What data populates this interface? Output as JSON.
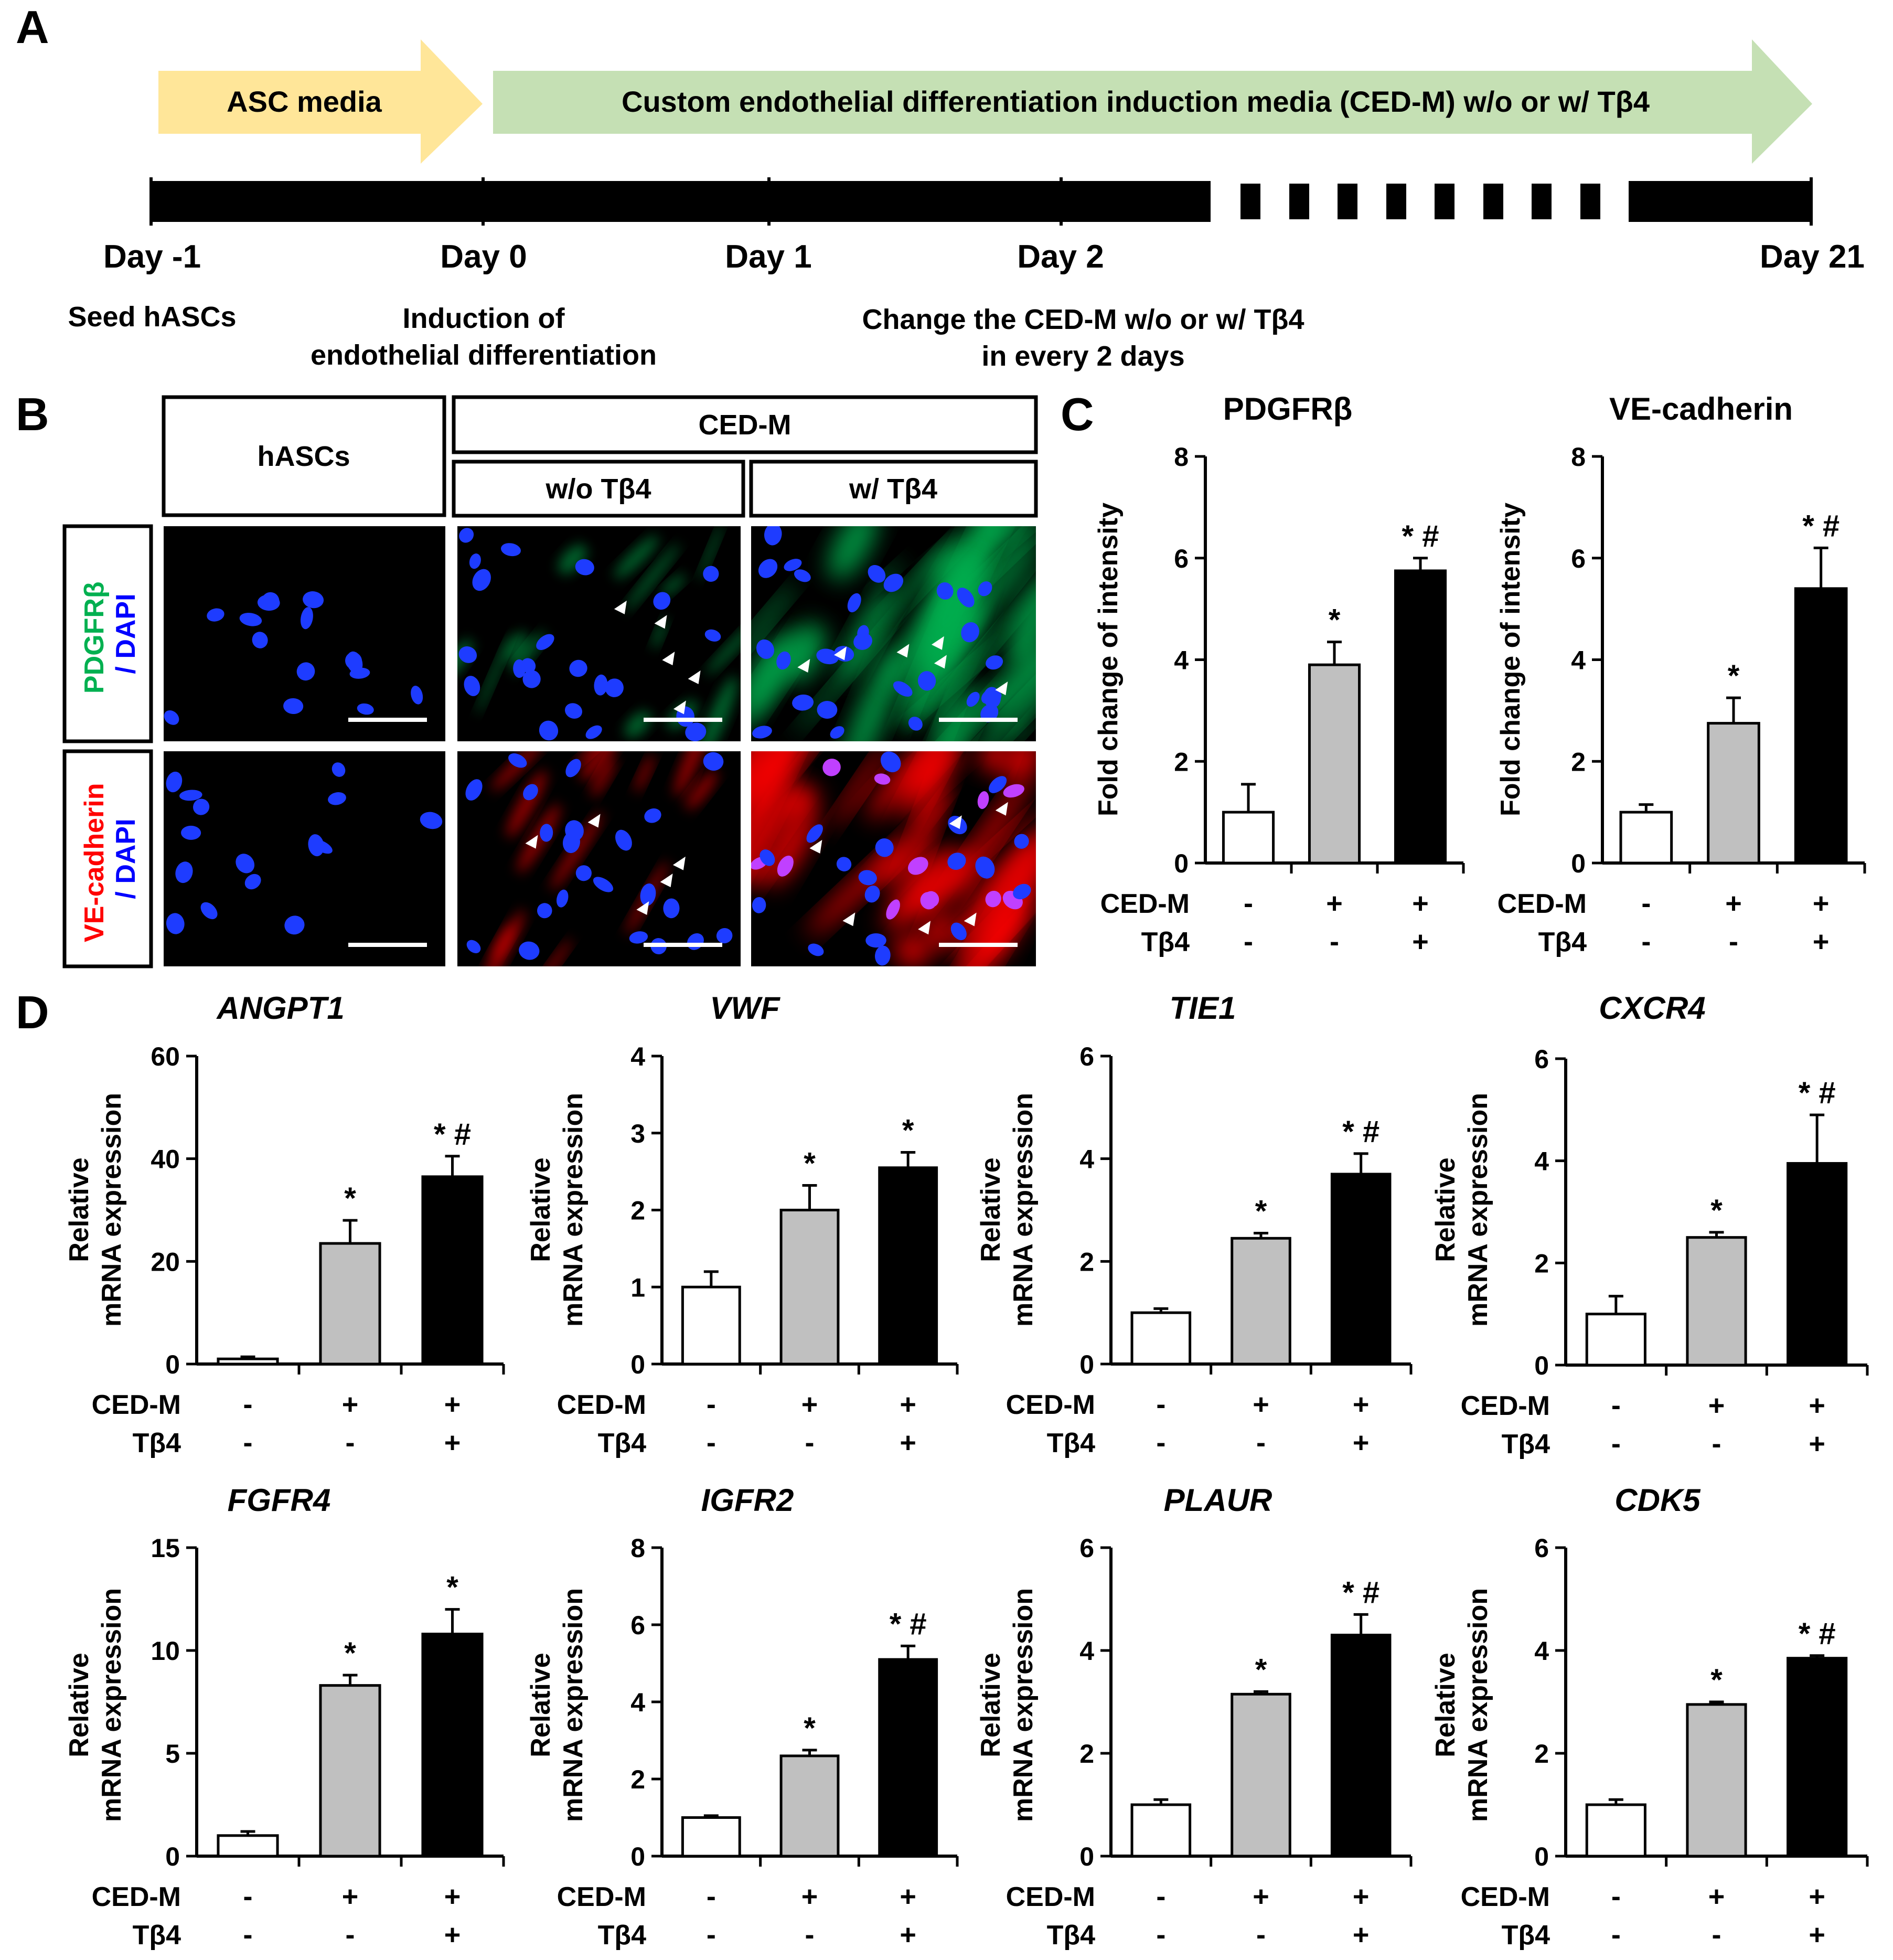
{
  "panel_a": {
    "letter": "A",
    "arrow_asc": "ASC media",
    "arrow_ced": "Custom endothelial differentiation induction media (CED-M) w/o or w/ Tβ4",
    "days": [
      "Day -1",
      "Day 0",
      "Day 1",
      "Day 2",
      "Day 21"
    ],
    "note_seed": "Seed hASCs",
    "note_induction_1": "Induction of",
    "note_induction_2": "endothelial differentiation",
    "note_change_1": "Change the CED-M w/o or w/ Tβ4",
    "note_change_2": "in every 2 days",
    "colors": {
      "asc_arrow": "#FFE699",
      "ced_arrow": "#C5E0B4",
      "timeline": "#000000"
    }
  },
  "panel_b": {
    "letter": "B",
    "header_hascs": "hASCs",
    "header_cedm": "CED-M",
    "header_wo": "w/o Tβ4",
    "header_w": "w/ Tβ4",
    "row1_marker": "PDGFRβ",
    "row1_dapi": "/ DAPI",
    "row2_marker": "VE-cadherin",
    "row2_dapi": "/ DAPI",
    "colors": {
      "pdgfrb": "#00B050",
      "vecad": "#FF0000",
      "dapi": "#0000FF",
      "nuclei": "#1E3CFF"
    }
  },
  "panel_c": {
    "letter": "C"
  },
  "panel_d": {
    "letter": "D"
  },
  "condition_rows": {
    "cedm_label": "CED-M",
    "tb4_label": "Tβ4",
    "cedm_signs": [
      "-",
      "+",
      "+"
    ],
    "tb4_signs": [
      "-",
      "-",
      "+"
    ]
  },
  "bar_colors": [
    "#FFFFFF",
    "#C0C0C0",
    "#000000"
  ],
  "chart_data": [
    {
      "id": "c-pdgfrb",
      "type": "bar",
      "title": "PDGFRβ",
      "title_italic": false,
      "ylabel": [
        "Fold change of intensity"
      ],
      "ylim": [
        0,
        8
      ],
      "yticks": [
        "0",
        "2",
        "4",
        "6",
        "8"
      ],
      "values": [
        1.0,
        3.9,
        5.75
      ],
      "errors": [
        0.55,
        0.45,
        0.25
      ],
      "annotations": [
        "",
        "*",
        "* #"
      ]
    },
    {
      "id": "c-vecad",
      "type": "bar",
      "title": "VE-cadherin",
      "title_italic": false,
      "ylabel": [
        "Fold change of intensity"
      ],
      "ylim": [
        0,
        8
      ],
      "yticks": [
        "0",
        "2",
        "4",
        "6",
        "8"
      ],
      "values": [
        1.0,
        2.75,
        5.4
      ],
      "errors": [
        0.15,
        0.5,
        0.8
      ],
      "annotations": [
        "",
        "*",
        "* #"
      ]
    },
    {
      "id": "d-angpt1",
      "type": "bar",
      "title": "ANGPT1",
      "title_italic": true,
      "ylabel": [
        "Relative",
        "mRNA expression"
      ],
      "ylim": [
        0,
        60
      ],
      "yticks": [
        "0",
        "20",
        "40",
        "60"
      ],
      "values": [
        1.0,
        23.5,
        36.5
      ],
      "errors": [
        0.4,
        4.5,
        4.0
      ],
      "annotations": [
        "",
        "*",
        "* #"
      ]
    },
    {
      "id": "d-vwf",
      "type": "bar",
      "title": "VWF",
      "title_italic": true,
      "ylabel": [
        "Relative",
        "mRNA expression"
      ],
      "ylim": [
        0,
        4
      ],
      "yticks": [
        "0",
        "1",
        "2",
        "3",
        "4"
      ],
      "values": [
        1.0,
        2.0,
        2.55
      ],
      "errors": [
        0.2,
        0.32,
        0.2
      ],
      "annotations": [
        "",
        "*",
        "*"
      ]
    },
    {
      "id": "d-tie1",
      "type": "bar",
      "title": "TIE1",
      "title_italic": true,
      "ylabel": [
        "Relative",
        "mRNA expression"
      ],
      "ylim": [
        0,
        6
      ],
      "yticks": [
        "0",
        "2",
        "4",
        "6"
      ],
      "values": [
        1.0,
        2.45,
        3.7
      ],
      "errors": [
        0.08,
        0.1,
        0.4
      ],
      "annotations": [
        "",
        "*",
        "* #"
      ]
    },
    {
      "id": "d-cxcr4",
      "type": "bar",
      "title": "CXCR4",
      "title_italic": true,
      "ylabel": [
        "Relative",
        "mRNA expression"
      ],
      "ylim": [
        0,
        6
      ],
      "yticks": [
        "0",
        "2",
        "4",
        "6"
      ],
      "values": [
        1.0,
        2.5,
        3.95
      ],
      "errors": [
        0.35,
        0.1,
        0.95
      ],
      "annotations": [
        "",
        "*",
        "* #"
      ]
    },
    {
      "id": "d-fgfr4",
      "type": "bar",
      "title": "FGFR4",
      "title_italic": true,
      "ylabel": [
        "Relative",
        "mRNA expression"
      ],
      "ylim": [
        0,
        15
      ],
      "yticks": [
        "0",
        "5",
        "10",
        "15"
      ],
      "values": [
        1.0,
        8.3,
        10.8
      ],
      "errors": [
        0.2,
        0.5,
        1.2
      ],
      "annotations": [
        "",
        "*",
        "*"
      ]
    },
    {
      "id": "d-igfr2",
      "type": "bar",
      "title": "IGFR2",
      "title_italic": true,
      "ylabel": [
        "Relative",
        "mRNA expression"
      ],
      "ylim": [
        0,
        8
      ],
      "yticks": [
        "0",
        "2",
        "4",
        "6",
        "8"
      ],
      "values": [
        1.0,
        2.6,
        5.1
      ],
      "errors": [
        0.05,
        0.15,
        0.35
      ],
      "annotations": [
        "",
        "*",
        "* #"
      ]
    },
    {
      "id": "d-plaur",
      "type": "bar",
      "title": "PLAUR",
      "title_italic": true,
      "ylabel": [
        "Relative",
        "mRNA expression"
      ],
      "ylim": [
        0,
        6
      ],
      "yticks": [
        "0",
        "2",
        "4",
        "6"
      ],
      "values": [
        1.0,
        3.15,
        4.3
      ],
      "errors": [
        0.1,
        0.05,
        0.4
      ],
      "annotations": [
        "",
        "*",
        "* #"
      ]
    },
    {
      "id": "d-cdk5",
      "type": "bar",
      "title": "CDK5",
      "title_italic": true,
      "ylabel": [
        "Relative",
        "mRNA expression"
      ],
      "ylim": [
        0,
        6
      ],
      "yticks": [
        "0",
        "2",
        "4",
        "6"
      ],
      "values": [
        1.0,
        2.95,
        3.85
      ],
      "errors": [
        0.1,
        0.05,
        0.05
      ],
      "annotations": [
        "",
        "*",
        "* #"
      ]
    }
  ]
}
